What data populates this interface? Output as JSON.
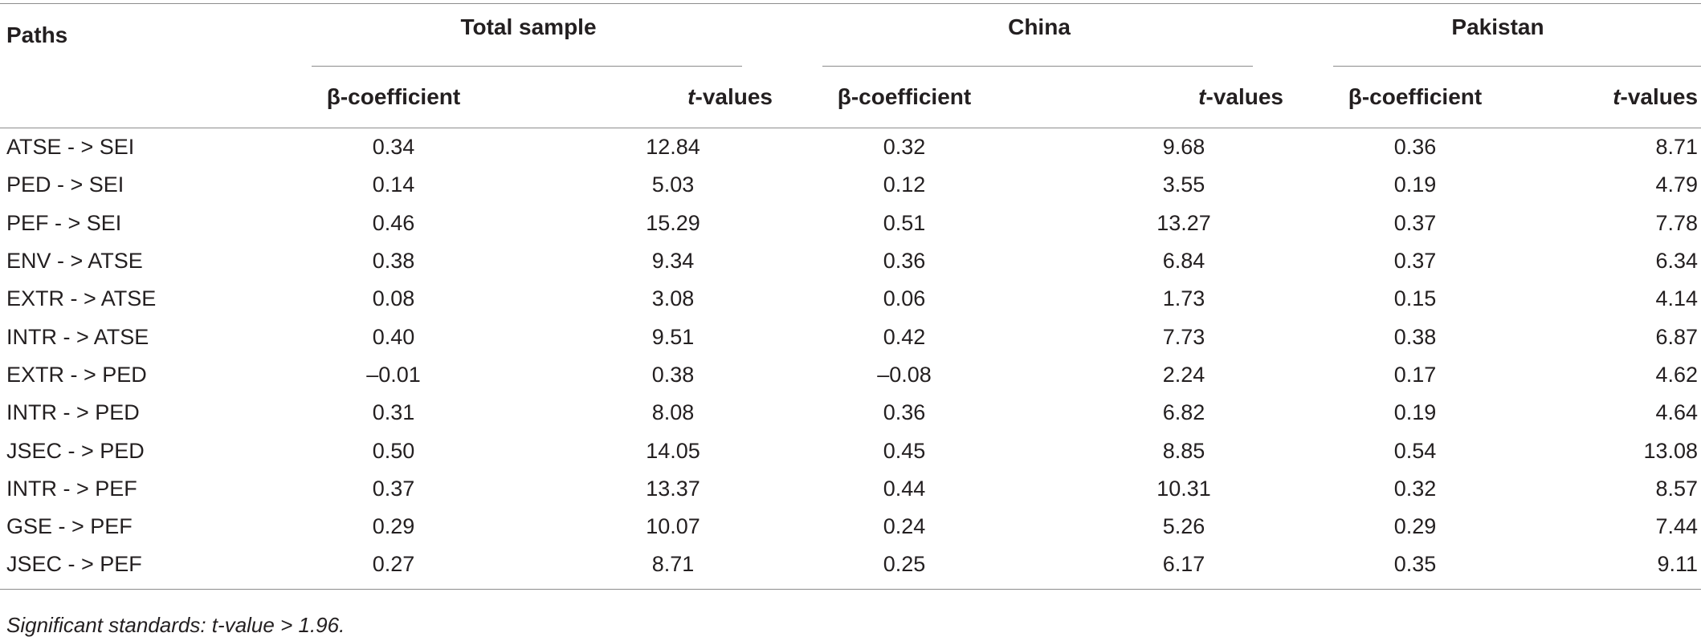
{
  "table": {
    "header": {
      "paths": "Paths",
      "groups": [
        "Total sample",
        "China",
        "Pakistan"
      ],
      "beta_label": "β-coefficient",
      "t_italic": "t",
      "t_suffix": "-values"
    },
    "rows": [
      {
        "path": "ATSE - >  SEI",
        "b1": "0.34",
        "t1": "12.84",
        "b2": "0.32",
        "t2": "9.68",
        "b3": "0.36",
        "t3": "8.71"
      },
      {
        "path": "PED - >  SEI",
        "b1": "0.14",
        "t1": "5.03",
        "b2": "0.12",
        "t2": "3.55",
        "b3": "0.19",
        "t3": "4.79"
      },
      {
        "path": "PEF - >  SEI",
        "b1": "0.46",
        "t1": "15.29",
        "b2": "0.51",
        "t2": "13.27",
        "b3": "0.37",
        "t3": "7.78"
      },
      {
        "path": "ENV - >  ATSE",
        "b1": "0.38",
        "t1": "9.34",
        "b2": "0.36",
        "t2": "6.84",
        "b3": "0.37",
        "t3": "6.34"
      },
      {
        "path": "EXTR - >  ATSE",
        "b1": "0.08",
        "t1": "3.08",
        "b2": "0.06",
        "t2": "1.73",
        "b3": "0.15",
        "t3": "4.14"
      },
      {
        "path": "INTR - >  ATSE",
        "b1": "0.40",
        "t1": "9.51",
        "b2": "0.42",
        "t2": "7.73",
        "b3": "0.38",
        "t3": "6.87"
      },
      {
        "path": "EXTR - >  PED",
        "b1": "–0.01",
        "t1": "0.38",
        "b2": "–0.08",
        "t2": "2.24",
        "b3": "0.17",
        "t3": "4.62"
      },
      {
        "path": "INTR - >  PED",
        "b1": "0.31",
        "t1": "8.08",
        "b2": "0.36",
        "t2": "6.82",
        "b3": "0.19",
        "t3": "4.64"
      },
      {
        "path": "JSEC - >  PED",
        "b1": "0.50",
        "t1": "14.05",
        "b2": "0.45",
        "t2": "8.85",
        "b3": "0.54",
        "t3": "13.08"
      },
      {
        "path": "INTR - >  PEF",
        "b1": "0.37",
        "t1": "13.37",
        "b2": "0.44",
        "t2": "10.31",
        "b3": "0.32",
        "t3": "8.57"
      },
      {
        "path": "GSE - >  PEF",
        "b1": "0.29",
        "t1": "10.07",
        "b2": "0.24",
        "t2": "5.26",
        "b3": "0.29",
        "t3": "7.44"
      },
      {
        "path": "JSEC - >  PEF",
        "b1": "0.27",
        "t1": "8.71",
        "b2": "0.25",
        "t2": "6.17",
        "b3": "0.35",
        "t3": "9.11"
      }
    ]
  },
  "footnote": "Significant standards: t-value > 1.96."
}
